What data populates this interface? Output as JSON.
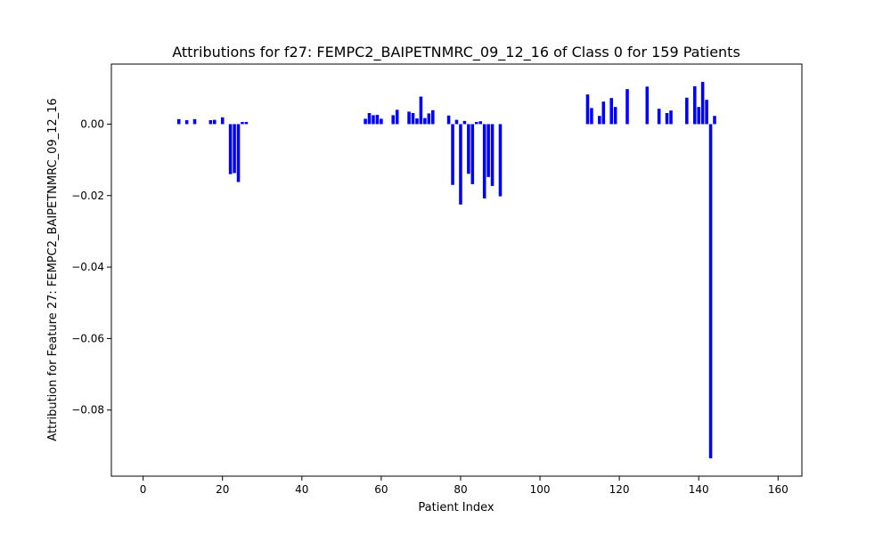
{
  "chart_data": {
    "type": "bar",
    "title": "Attributions for f27: FEMPC2_BAIPETNMRC_09_12_16 of Class 0 for 159 Patients",
    "xlabel": "Patient Index",
    "ylabel": "Attribution for Feature 27: FEMPC2_BAIPETNMRC_09_12_16",
    "xlim": [
      -8,
      166
    ],
    "ylim": [
      -0.0985,
      0.0168
    ],
    "xticks": [
      0,
      20,
      40,
      60,
      80,
      100,
      120,
      140,
      160
    ],
    "yticks": [
      0.0,
      -0.02,
      -0.04,
      -0.06,
      -0.08
    ],
    "ytick_labels": [
      "0.00",
      "−0.02",
      "−0.04",
      "−0.06",
      "−0.08"
    ],
    "grid": false,
    "bar_color": "#0000ff",
    "x": [
      9,
      11,
      13,
      17,
      18,
      20,
      22,
      23,
      24,
      25,
      26,
      56,
      57,
      58,
      59,
      60,
      63,
      64,
      67,
      68,
      69,
      70,
      71,
      72,
      73,
      77,
      78,
      79,
      80,
      81,
      82,
      83,
      84,
      85,
      86,
      87,
      88,
      90,
      112,
      113,
      115,
      116,
      118,
      119,
      122,
      127,
      130,
      132,
      133,
      137,
      139,
      140,
      141,
      142,
      143,
      144
    ],
    "values": [
      0.0014,
      0.0011,
      0.0014,
      0.0011,
      0.0012,
      0.0019,
      -0.014,
      -0.0137,
      -0.0162,
      0.0006,
      0.0006,
      0.0015,
      0.0031,
      0.0025,
      0.0026,
      0.0015,
      0.0025,
      0.004,
      0.0035,
      0.0031,
      0.0016,
      0.0077,
      0.0017,
      0.003,
      0.0039,
      0.0024,
      -0.017,
      0.0012,
      -0.0225,
      0.0009,
      -0.0139,
      -0.0168,
      0.0006,
      0.0008,
      -0.0208,
      -0.0148,
      -0.0173,
      -0.0202,
      0.0083,
      0.0045,
      0.0023,
      0.0063,
      0.0073,
      0.0048,
      0.0098,
      0.0105,
      0.0043,
      0.0031,
      0.0038,
      0.0074,
      0.0106,
      0.0048,
      0.0118,
      0.0068,
      -0.0935,
      0.0023
    ]
  }
}
